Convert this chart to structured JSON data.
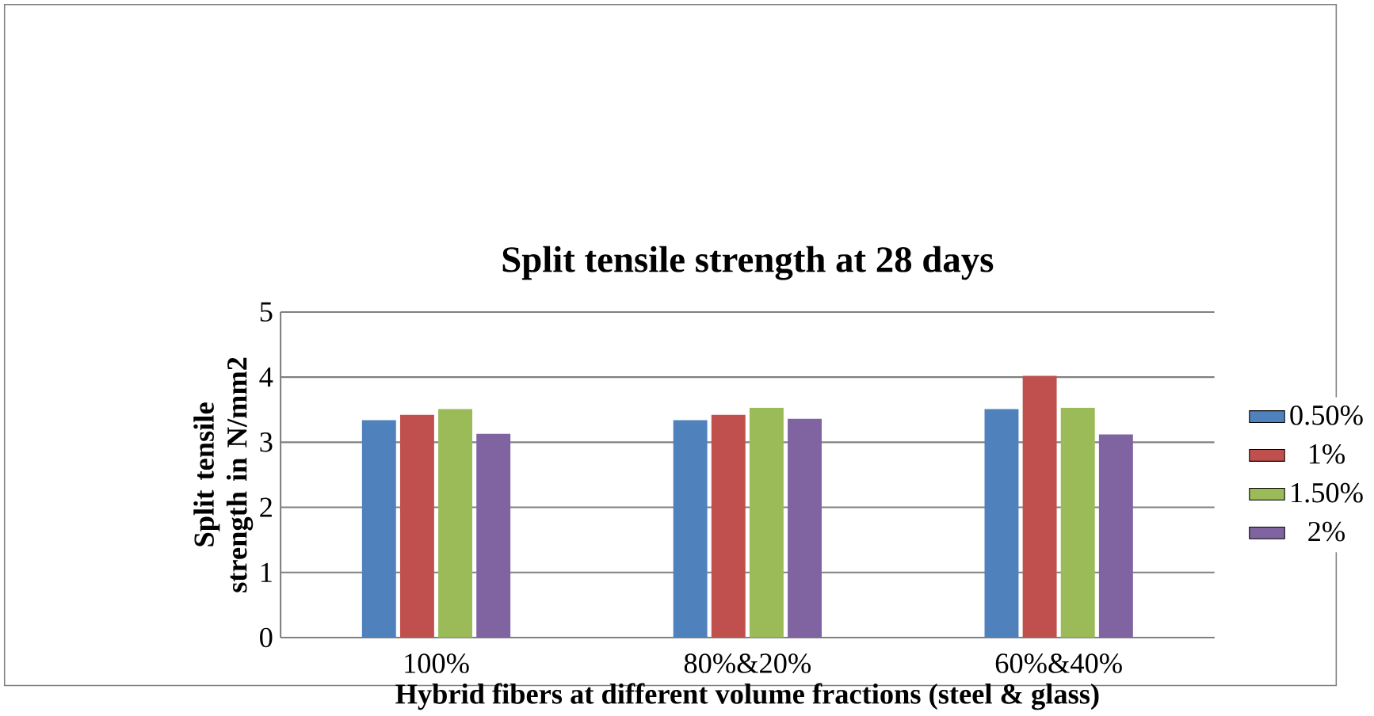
{
  "chart_data": {
    "type": "bar",
    "title": "Split tensile strength at 28 days",
    "xlabel": "Hybrid fibers at different volume fractions (steel & glass)",
    "ylabel": "Split tensile strength in N/mm2",
    "categories": [
      "100%",
      "80%&20%",
      "60%&40%"
    ],
    "series": [
      {
        "name": "0.50%",
        "color": "#4f81bd",
        "values": [
          3.34,
          3.34,
          3.51
        ]
      },
      {
        "name": "1%",
        "color": "#c0504d",
        "values": [
          3.42,
          3.42,
          4.02
        ]
      },
      {
        "name": "1.50%",
        "color": "#9bbb59",
        "values": [
          3.51,
          3.53,
          3.53
        ]
      },
      {
        "name": "2%",
        "color": "#8064a2",
        "values": [
          3.13,
          3.36,
          3.12
        ]
      }
    ],
    "ylim": [
      0,
      5
    ],
    "yticks": [
      0,
      1,
      2,
      3,
      4,
      5
    ],
    "grid": "y",
    "legend": "right"
  }
}
